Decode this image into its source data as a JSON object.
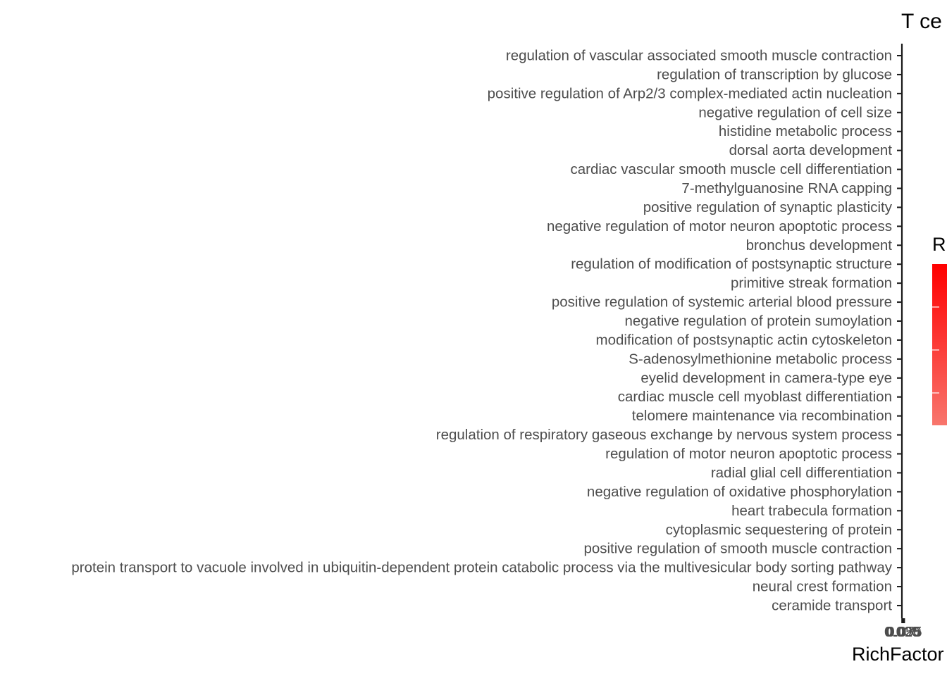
{
  "title": "T ce",
  "chart_data": {
    "type": "bar",
    "xlabel": "RichFactor",
    "legend_title": "R",
    "legend_colors": [
      "#ff0000",
      "#f8766d"
    ],
    "x_tick_labels": [
      "0.000",
      "0.025",
      "0.050",
      "0.075"
    ],
    "categories": [
      "regulation of vascular associated smooth muscle contraction",
      "regulation of transcription by glucose",
      "positive regulation of Arp2/3 complex-mediated actin nucleation",
      "negative regulation of cell size",
      "histidine metabolic process",
      "dorsal aorta development",
      "cardiac vascular smooth muscle cell differentiation",
      "7-methylguanosine RNA capping",
      "positive regulation of synaptic plasticity",
      "negative regulation of motor neuron apoptotic process",
      "bronchus development",
      "regulation of modification of postsynaptic structure",
      "primitive streak formation",
      "positive regulation of systemic arterial blood pressure",
      "negative regulation of protein sumoylation",
      "modification of postsynaptic actin cytoskeleton",
      "S-adenosylmethionine metabolic process",
      "eyelid development in camera-type eye",
      "cardiac muscle cell myoblast differentiation",
      "telomere maintenance via recombination",
      "regulation of respiratory gaseous exchange by nervous system process",
      "regulation of motor neuron apoptotic process",
      "radial glial cell differentiation",
      "negative regulation of oxidative phosphorylation",
      "heart trabecula formation",
      "cytoplasmic sequestering of protein",
      "positive regulation of smooth muscle contraction",
      "protein transport to vacuole involved in ubiquitin-dependent protein catabolic process via the multivesicular body sorting pathway",
      "neural crest formation",
      "ceramide transport"
    ]
  }
}
